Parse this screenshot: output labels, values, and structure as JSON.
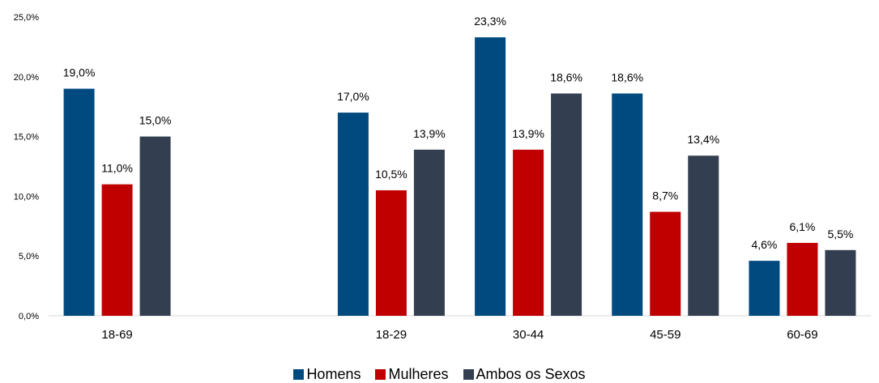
{
  "chart_data": {
    "type": "bar",
    "categories": [
      "18-69",
      "",
      "18-29",
      "30-44",
      "45-59",
      "60-69"
    ],
    "series": [
      {
        "name": "Homens",
        "color": "#004a80",
        "values": [
          19.0,
          null,
          17.0,
          23.3,
          18.6,
          4.6
        ],
        "labels": [
          "19,0%",
          "",
          "17,0%",
          "23,3%",
          "18,6%",
          "4,6%"
        ]
      },
      {
        "name": "Mulheres",
        "color": "#c00000",
        "values": [
          11.0,
          null,
          10.5,
          13.9,
          8.7,
          6.1
        ],
        "labels": [
          "11,0%",
          "",
          "10,5%",
          "13,9%",
          "8,7%",
          "6,1%"
        ]
      },
      {
        "name": "Ambos os Sexos",
        "color": "#333f50",
        "values": [
          15.0,
          null,
          13.9,
          18.6,
          13.4,
          5.5
        ],
        "labels": [
          "15,0%",
          "",
          "13,9%",
          "18,6%",
          "13,4%",
          "5,5%"
        ]
      }
    ],
    "ylim": [
      0,
      25
    ],
    "yticks": [
      0,
      5,
      10,
      15,
      20,
      25
    ],
    "ytick_labels": [
      "0,0%",
      "5,0%",
      "10,0%",
      "15,0%",
      "20,0%",
      "25,0%"
    ],
    "grid": false,
    "legend_position": "bottom"
  }
}
